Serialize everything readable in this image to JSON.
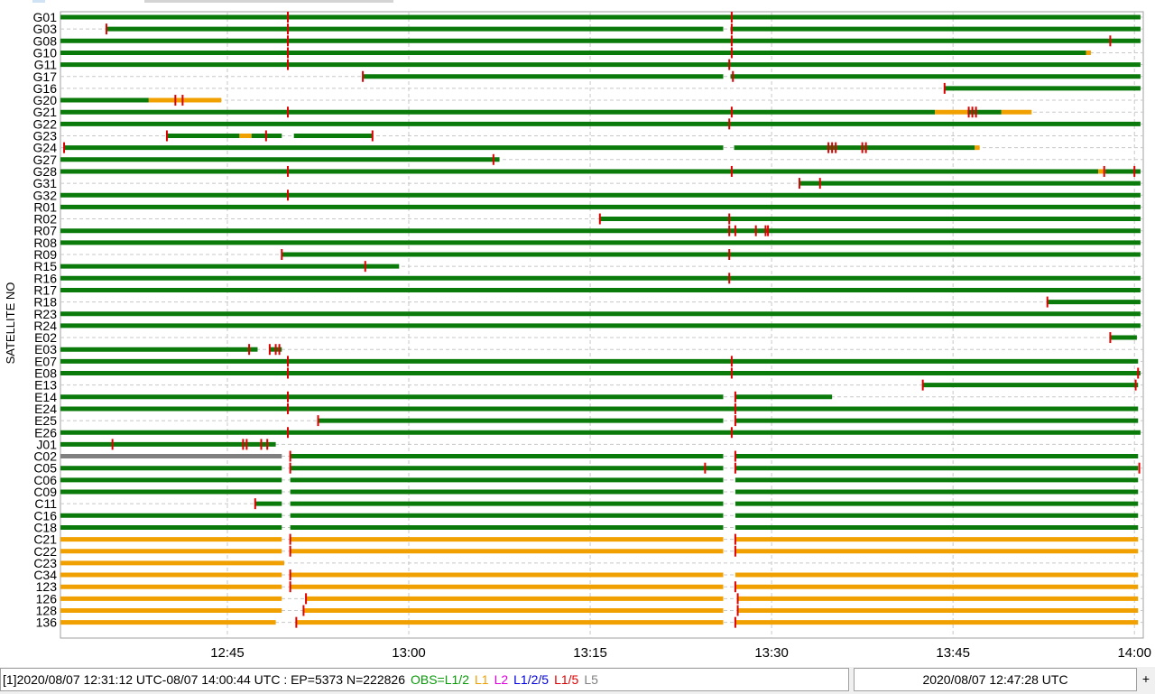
{
  "chart_data": {
    "type": "timeline",
    "ylabel": "SATELLITE NO",
    "x_ticks": [
      "12:45",
      "13:00",
      "13:15",
      "13:30",
      "13:45",
      "14:00"
    ],
    "x_tick_minutes": [
      45,
      60,
      75,
      90,
      105,
      120
    ],
    "xlim_minutes": [
      31.2,
      120.73
    ],
    "x_reference": "12:00",
    "satellites": [
      "G01",
      "G03",
      "G08",
      "G10",
      "G11",
      "G17",
      "G16",
      "G20",
      "G21",
      "G22",
      "G23",
      "G24",
      "G27",
      "G28",
      "G31",
      "G32",
      "R01",
      "R02",
      "R07",
      "R08",
      "R09",
      "R15",
      "R16",
      "R17",
      "R18",
      "R23",
      "R24",
      "E02",
      "E03",
      "E07",
      "E08",
      "E13",
      "E14",
      "E24",
      "E25",
      "E26",
      "J01",
      "C02",
      "C05",
      "C06",
      "C09",
      "C11",
      "C16",
      "C18",
      "C21",
      "C22",
      "C23",
      "C34",
      "123",
      "126",
      "128",
      "136"
    ],
    "colors": {
      "L1/2": "#0a7a0a",
      "L1": "#f0a000",
      "L2": "#e000e0",
      "L1/2/5": "#0000e0",
      "L1/5": "#e00000",
      "L5": "#808080",
      "slip": "#e00000"
    },
    "tracks": [
      {
        "sat": "G01",
        "segs": [
          [
            31.2,
            120.5,
            "L1/2"
          ]
        ],
        "slips": [
          50.0,
          86.7
        ]
      },
      {
        "sat": "G03",
        "segs": [
          [
            35.0,
            86.0,
            "L1/2"
          ],
          [
            86.6,
            120.5,
            "L1/2"
          ]
        ],
        "slips": [
          35.0,
          50.0,
          86.7
        ]
      },
      {
        "sat": "G08",
        "segs": [
          [
            31.2,
            120.5,
            "L1/2"
          ]
        ],
        "slips": [
          50.0,
          86.7,
          118.0
        ]
      },
      {
        "sat": "G10",
        "segs": [
          [
            31.2,
            116.0,
            "L1/2"
          ],
          [
            116.0,
            116.4,
            "L1"
          ]
        ],
        "slips": [
          50.0,
          86.7
        ]
      },
      {
        "sat": "G11",
        "segs": [
          [
            31.2,
            120.5,
            "L1/2"
          ]
        ],
        "slips": [
          50.0,
          86.5
        ]
      },
      {
        "sat": "G17",
        "segs": [
          [
            56.2,
            86.0,
            "L1/2"
          ],
          [
            86.6,
            120.5,
            "L1/2"
          ]
        ],
        "slips": [
          56.2,
          86.8
        ]
      },
      {
        "sat": "G16",
        "segs": [
          [
            104.3,
            120.5,
            "L1/2"
          ]
        ],
        "slips": [
          104.3
        ]
      },
      {
        "sat": "G20",
        "segs": [
          [
            31.2,
            38.5,
            "L1/2"
          ],
          [
            38.5,
            44.5,
            "L1"
          ]
        ],
        "slips": [
          40.7,
          41.3
        ]
      },
      {
        "sat": "G21",
        "segs": [
          [
            31.2,
            103.5,
            "L1/2"
          ],
          [
            103.5,
            106.2,
            "L1"
          ],
          [
            106.2,
            109.0,
            "L1/2"
          ],
          [
            109.0,
            111.5,
            "L1"
          ]
        ],
        "slips": [
          50.0,
          86.7,
          106.3,
          106.6,
          106.9
        ]
      },
      {
        "sat": "G22",
        "segs": [
          [
            31.2,
            120.5,
            "L1/2"
          ]
        ],
        "slips": [
          86.5
        ]
      },
      {
        "sat": "G23",
        "segs": [
          [
            40.0,
            46.0,
            "L1/2"
          ],
          [
            46.0,
            47.0,
            "L1"
          ],
          [
            47.0,
            49.5,
            "L1/2"
          ],
          [
            50.5,
            57.0,
            "L1/2"
          ]
        ],
        "slips": [
          40.0,
          48.2,
          57.0
        ]
      },
      {
        "sat": "G24",
        "segs": [
          [
            31.5,
            86.0,
            "L1/2"
          ],
          [
            86.9,
            106.8,
            "L1/2"
          ],
          [
            106.8,
            107.2,
            "L1"
          ]
        ],
        "slips": [
          31.5,
          94.7,
          95.0,
          95.3,
          97.5,
          97.8
        ]
      },
      {
        "sat": "G27",
        "segs": [
          [
            31.2,
            67.5,
            "L1/2"
          ]
        ],
        "slips": [
          67.0
        ]
      },
      {
        "sat": "G28",
        "segs": [
          [
            31.2,
            117.0,
            "L1/2"
          ],
          [
            117.0,
            117.6,
            "L1"
          ],
          [
            117.6,
            120.5,
            "L1/2"
          ]
        ],
        "slips": [
          50.0,
          86.7,
          117.5,
          120.0
        ]
      },
      {
        "sat": "G31",
        "segs": [
          [
            92.3,
            120.5,
            "L1/2"
          ]
        ],
        "slips": [
          92.3,
          94.0
        ]
      },
      {
        "sat": "G32",
        "segs": [
          [
            31.2,
            120.5,
            "L1/2"
          ]
        ],
        "slips": [
          50.0
        ]
      },
      {
        "sat": "R01",
        "segs": [
          [
            31.2,
            120.5,
            "L1/2"
          ]
        ],
        "slips": []
      },
      {
        "sat": "R02",
        "segs": [
          [
            75.8,
            120.5,
            "L1/2"
          ]
        ],
        "slips": [
          75.8,
          86.5
        ]
      },
      {
        "sat": "R07",
        "segs": [
          [
            31.2,
            120.5,
            "L1/2"
          ]
        ],
        "slips": [
          86.5,
          87.0,
          88.7,
          89.5,
          89.7
        ]
      },
      {
        "sat": "R08",
        "segs": [
          [
            31.2,
            120.5,
            "L1/2"
          ]
        ],
        "slips": []
      },
      {
        "sat": "R09",
        "segs": [
          [
            49.5,
            120.5,
            "L1/2"
          ]
        ],
        "slips": [
          49.5,
          86.5
        ]
      },
      {
        "sat": "R15",
        "segs": [
          [
            31.2,
            59.2,
            "L1/2"
          ]
        ],
        "slips": [
          56.4
        ]
      },
      {
        "sat": "R16",
        "segs": [
          [
            31.2,
            120.5,
            "L1/2"
          ]
        ],
        "slips": [
          86.5
        ]
      },
      {
        "sat": "R17",
        "segs": [
          [
            31.2,
            120.5,
            "L1/2"
          ]
        ],
        "slips": []
      },
      {
        "sat": "R18",
        "segs": [
          [
            112.8,
            120.5,
            "L1/2"
          ]
        ],
        "slips": [
          112.8
        ]
      },
      {
        "sat": "R23",
        "segs": [
          [
            31.2,
            120.5,
            "L1/2"
          ]
        ],
        "slips": []
      },
      {
        "sat": "R24",
        "segs": [
          [
            31.2,
            120.5,
            "L1/2"
          ]
        ],
        "slips": []
      },
      {
        "sat": "E02",
        "segs": [
          [
            118.0,
            120.2,
            "L1/2"
          ]
        ],
        "slips": [
          118.0
        ]
      },
      {
        "sat": "E03",
        "segs": [
          [
            31.2,
            46.8,
            "L1/2"
          ],
          [
            46.8,
            47.5,
            "L1/2"
          ],
          [
            48.5,
            49.5,
            "L1/2"
          ]
        ],
        "slips": [
          46.8,
          48.5,
          49.0,
          49.3
        ]
      },
      {
        "sat": "E07",
        "segs": [
          [
            31.2,
            120.3,
            "L1/2"
          ]
        ],
        "slips": [
          50.0,
          86.7
        ]
      },
      {
        "sat": "E08",
        "segs": [
          [
            31.2,
            120.5,
            "L1/2"
          ]
        ],
        "slips": [
          50.0,
          86.7,
          120.3
        ]
      },
      {
        "sat": "E13",
        "segs": [
          [
            102.5,
            120.3,
            "L1/2"
          ]
        ],
        "slips": [
          102.5,
          120.1
        ]
      },
      {
        "sat": "E14",
        "segs": [
          [
            31.2,
            86.0,
            "L1/2"
          ],
          [
            87.0,
            95.0,
            "L1/2"
          ]
        ],
        "slips": [
          50.0,
          87.0
        ]
      },
      {
        "sat": "E24",
        "segs": [
          [
            31.2,
            120.3,
            "L1/2"
          ]
        ],
        "slips": [
          50.0,
          87.0
        ]
      },
      {
        "sat": "E25",
        "segs": [
          [
            52.5,
            86.0,
            "L1/2"
          ],
          [
            87.0,
            120.3,
            "L1/2"
          ]
        ],
        "slips": [
          52.5,
          87.0
        ]
      },
      {
        "sat": "E26",
        "segs": [
          [
            31.2,
            120.5,
            "L1/2"
          ]
        ],
        "slips": [
          50.0,
          86.7
        ]
      },
      {
        "sat": "J01",
        "segs": [
          [
            31.2,
            49.0,
            "L1/2"
          ]
        ],
        "slips": [
          35.5,
          46.3,
          46.6,
          47.8,
          48.3
        ]
      },
      {
        "sat": "C02",
        "segs": [
          [
            31.2,
            49.5,
            "L5"
          ],
          [
            50.2,
            86.0,
            "L1/2"
          ],
          [
            87.0,
            120.3,
            "L1/2"
          ]
        ],
        "slips": [
          50.2,
          87.0
        ]
      },
      {
        "sat": "C05",
        "segs": [
          [
            31.2,
            49.5,
            "L1/2"
          ],
          [
            50.2,
            86.0,
            "L1/2"
          ],
          [
            87.0,
            120.3,
            "L1/2"
          ]
        ],
        "slips": [
          50.2,
          84.5,
          87.0,
          120.4
        ]
      },
      {
        "sat": "C06",
        "segs": [
          [
            31.2,
            49.5,
            "L1/2"
          ],
          [
            50.2,
            86.0,
            "L1/2"
          ],
          [
            87.0,
            120.3,
            "L1/2"
          ]
        ],
        "slips": []
      },
      {
        "sat": "C09",
        "segs": [
          [
            31.2,
            49.5,
            "L1/2"
          ],
          [
            50.2,
            86.0,
            "L1/2"
          ],
          [
            87.0,
            120.3,
            "L1/2"
          ]
        ],
        "slips": []
      },
      {
        "sat": "C11",
        "segs": [
          [
            47.3,
            49.5,
            "L1/2"
          ],
          [
            50.2,
            86.0,
            "L1/2"
          ],
          [
            87.0,
            120.3,
            "L1/2"
          ]
        ],
        "slips": [
          47.3
        ]
      },
      {
        "sat": "C16",
        "segs": [
          [
            31.2,
            49.5,
            "L1/2"
          ],
          [
            50.2,
            86.0,
            "L1/2"
          ],
          [
            87.0,
            120.3,
            "L1/2"
          ]
        ],
        "slips": []
      },
      {
        "sat": "C18",
        "segs": [
          [
            31.2,
            49.5,
            "L1/2"
          ],
          [
            50.2,
            86.0,
            "L1/2"
          ],
          [
            87.0,
            120.3,
            "L1/2"
          ]
        ],
        "slips": []
      },
      {
        "sat": "C21",
        "segs": [
          [
            31.2,
            49.5,
            "L1"
          ],
          [
            50.2,
            86.0,
            "L1"
          ],
          [
            87.0,
            120.3,
            "L1"
          ]
        ],
        "slips": [
          50.2,
          87.0
        ]
      },
      {
        "sat": "C22",
        "segs": [
          [
            31.2,
            49.5,
            "L1"
          ],
          [
            50.2,
            86.0,
            "L1"
          ],
          [
            87.0,
            120.3,
            "L1"
          ]
        ],
        "slips": [
          50.2,
          87.0
        ]
      },
      {
        "sat": "C23",
        "segs": [
          [
            31.2,
            49.7,
            "L1"
          ]
        ],
        "slips": []
      },
      {
        "sat": "C34",
        "segs": [
          [
            31.2,
            49.5,
            "L1"
          ],
          [
            50.2,
            86.0,
            "L1"
          ],
          [
            87.0,
            120.3,
            "L1"
          ]
        ],
        "slips": [
          50.2
        ]
      },
      {
        "sat": "123",
        "segs": [
          [
            31.2,
            49.5,
            "L1"
          ],
          [
            50.2,
            86.0,
            "L1"
          ],
          [
            87.0,
            120.3,
            "L1"
          ]
        ],
        "slips": [
          50.2,
          87.0
        ]
      },
      {
        "sat": "126",
        "segs": [
          [
            31.2,
            49.5,
            "L1"
          ],
          [
            51.5,
            86.0,
            "L1"
          ],
          [
            87.2,
            120.3,
            "L1"
          ]
        ],
        "slips": [
          51.5,
          87.2
        ]
      },
      {
        "sat": "128",
        "segs": [
          [
            31.2,
            49.5,
            "L1"
          ],
          [
            51.3,
            86.0,
            "L1"
          ],
          [
            87.2,
            120.3,
            "L1"
          ]
        ],
        "slips": [
          51.3,
          87.2
        ]
      },
      {
        "sat": "136",
        "segs": [
          [
            31.2,
            49.0,
            "L1"
          ],
          [
            50.7,
            86.0,
            "L1"
          ],
          [
            87.0,
            120.3,
            "L1"
          ]
        ],
        "slips": [
          50.7,
          87.0
        ]
      }
    ]
  },
  "status": {
    "left_text": "[1]2020/08/07 12:31:12 UTC-08/07 14:00:44 UTC : EP=5373 N=222826",
    "legend_obs": "OBS=L1/2",
    "legend_l1": "L1",
    "legend_l2": "L2",
    "legend_l125": "L1/2/5",
    "legend_l15": "L1/5",
    "legend_l5": "L5",
    "right_text": "2020/08/07 12:47:28 UTC",
    "plus": "+"
  }
}
